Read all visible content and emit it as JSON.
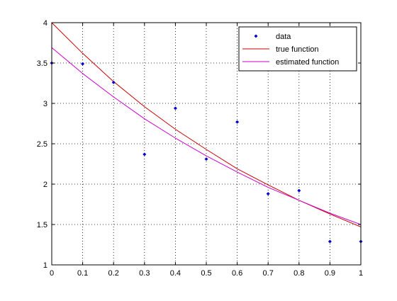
{
  "chart_data": {
    "type": "line",
    "title": "",
    "xlabel": "",
    "ylabel": "",
    "xlim": [
      0,
      1
    ],
    "ylim": [
      1,
      4
    ],
    "grid": true,
    "legend_position": "top-right",
    "x_ticks": [
      "0",
      "0.1",
      "0.2",
      "0.3",
      "0.4",
      "0.5",
      "0.6",
      "0.7",
      "0.8",
      "0.9",
      "1"
    ],
    "y_ticks": [
      "1",
      "1.5",
      "2",
      "2.5",
      "3",
      "3.5",
      "4"
    ],
    "x_tick_values": [
      0,
      0.1,
      0.2,
      0.3,
      0.4,
      0.5,
      0.6,
      0.7,
      0.8,
      0.9,
      1
    ],
    "y_tick_values": [
      1,
      1.5,
      2,
      2.5,
      3,
      3.5,
      4
    ],
    "series": [
      {
        "name": "data",
        "kind": "markers",
        "color": "#0000cc",
        "x": [
          0,
          0.1,
          0.2,
          0.3,
          0.4,
          0.5,
          0.6,
          0.7,
          0.8,
          0.9,
          1.0
        ],
        "y": [
          3.5,
          3.49,
          3.26,
          2.37,
          2.94,
          2.31,
          2.77,
          1.88,
          1.92,
          1.29,
          1.29
        ]
      },
      {
        "name": "true function",
        "kind": "line",
        "color": "#cc0000",
        "x": [
          0,
          0.1,
          0.2,
          0.3,
          0.4,
          0.5,
          0.6,
          0.7,
          0.8,
          0.9,
          1.0
        ],
        "y": [
          4.0,
          3.62,
          3.27,
          2.96,
          2.68,
          2.43,
          2.19,
          1.99,
          1.8,
          1.63,
          1.47
        ]
      },
      {
        "name": "estimated function",
        "kind": "line",
        "color": "#cc00cc",
        "x": [
          0,
          0.1,
          0.2,
          0.3,
          0.4,
          0.5,
          0.6,
          0.7,
          0.8,
          0.9,
          1.0
        ],
        "y": [
          3.69,
          3.37,
          3.08,
          2.81,
          2.57,
          2.35,
          2.15,
          1.96,
          1.8,
          1.64,
          1.5
        ]
      }
    ]
  }
}
